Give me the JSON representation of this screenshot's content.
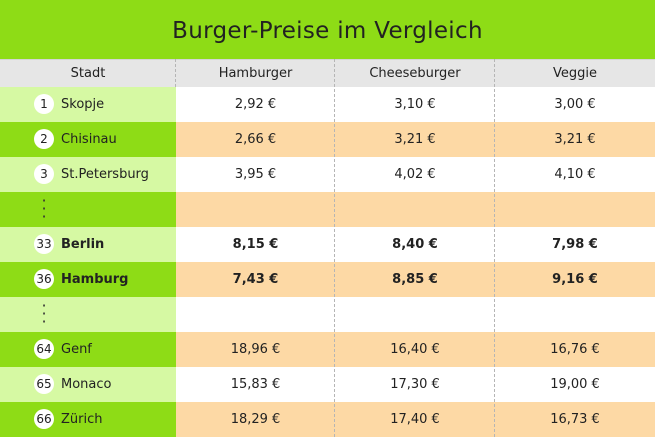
{
  "title": "Burger-Preise im Vergleich",
  "colors": {
    "title_bg": "#8edc16",
    "city_dark": "#8edc16",
    "city_light": "#d6f9a3",
    "row_orange": "#fdd9a5",
    "row_white": "#ffffff",
    "header_bg": "#e6e6e6"
  },
  "chart_data": {
    "type": "table",
    "columns": [
      "Stadt",
      "Hamburger",
      "Cheeseburger",
      "Veggie"
    ],
    "rows": [
      {
        "rank": "1",
        "city": "Skopje",
        "values": [
          "2,92 €",
          "3,10 €",
          "3,00 €"
        ],
        "bold": false,
        "ellipsis": false
      },
      {
        "rank": "2",
        "city": "Chisinau",
        "values": [
          "2,66 €",
          "3,21 €",
          "3,21 €"
        ],
        "bold": false,
        "ellipsis": false
      },
      {
        "rank": "3",
        "city": "St.Petersburg",
        "values": [
          "3,95 €",
          "4,02 €",
          "4,10 €"
        ],
        "bold": false,
        "ellipsis": false
      },
      {
        "rank": "",
        "city": "",
        "values": [
          "",
          "",
          ""
        ],
        "bold": false,
        "ellipsis": true
      },
      {
        "rank": "33",
        "city": "Berlin",
        "values": [
          "8,15 €",
          "8,40 €",
          "7,98 €"
        ],
        "bold": true,
        "ellipsis": false
      },
      {
        "rank": "36",
        "city": "Hamburg",
        "values": [
          "7,43 €",
          "8,85 €",
          "9,16 €"
        ],
        "bold": true,
        "ellipsis": false
      },
      {
        "rank": "",
        "city": "",
        "values": [
          "",
          "",
          ""
        ],
        "bold": false,
        "ellipsis": true
      },
      {
        "rank": "64",
        "city": "Genf",
        "values": [
          "18,96 €",
          "16,40 €",
          "16,76 €"
        ],
        "bold": false,
        "ellipsis": false
      },
      {
        "rank": "65",
        "city": "Monaco",
        "values": [
          "15,83 €",
          "17,30 €",
          "19,00 €"
        ],
        "bold": false,
        "ellipsis": false
      },
      {
        "rank": "66",
        "city": "Zürich",
        "values": [
          "18,29 €",
          "17,40 €",
          "16,73 €"
        ],
        "bold": false,
        "ellipsis": false
      }
    ]
  }
}
